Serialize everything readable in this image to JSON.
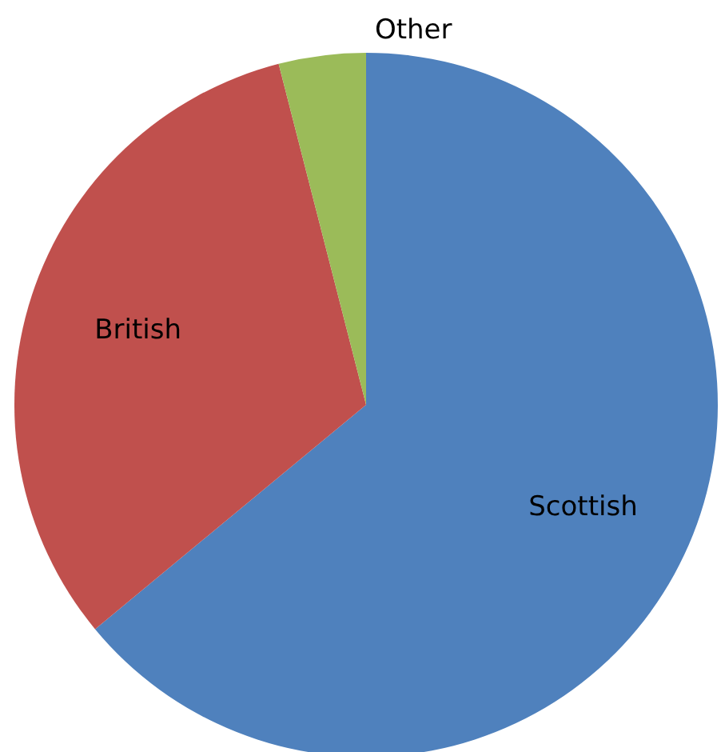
{
  "chart_data": {
    "type": "pie",
    "categories": [
      "Scottish",
      "British",
      "Other"
    ],
    "values": [
      64,
      32,
      4
    ],
    "colors": [
      "#4f81bd",
      "#c0504d",
      "#9bbb59"
    ],
    "legend": false
  }
}
